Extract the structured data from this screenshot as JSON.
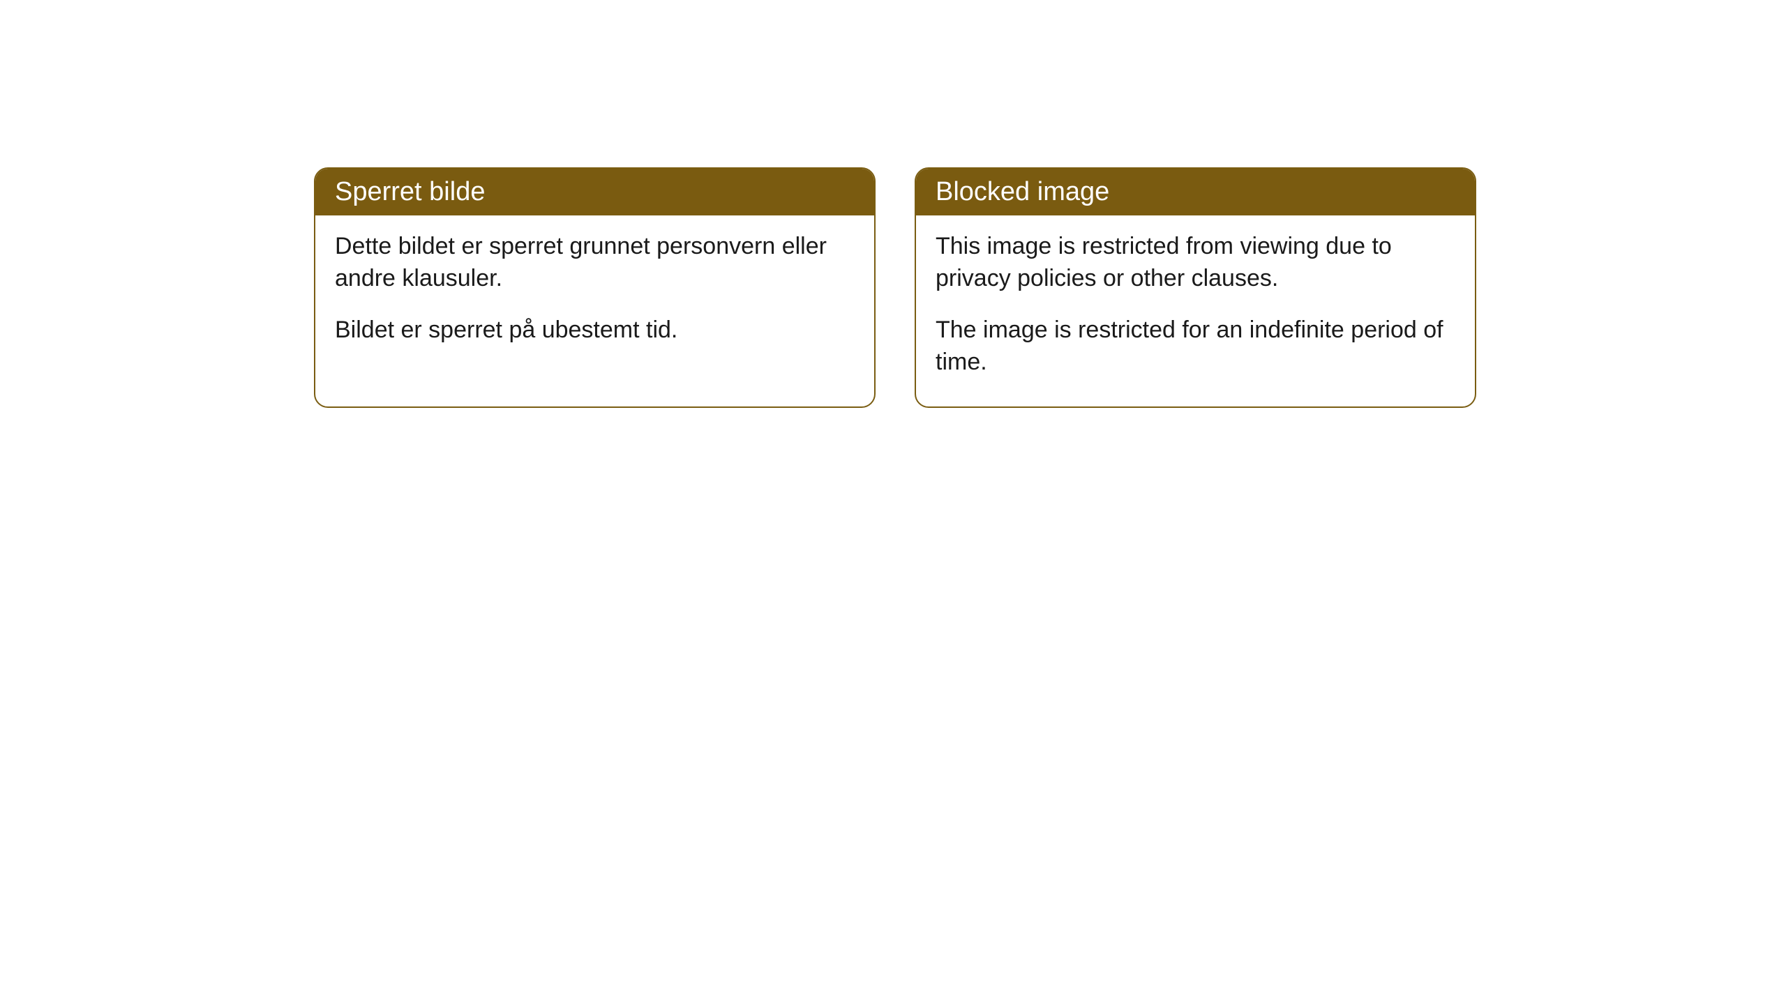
{
  "cards": [
    {
      "title": "Sperret bilde",
      "paragraph1": "Dette bildet er sperret grunnet personvern eller andre klausuler.",
      "paragraph2": "Bildet er sperret på ubestemt tid."
    },
    {
      "title": "Blocked image",
      "paragraph1": "This image is restricted from viewing due to privacy policies or other clauses.",
      "paragraph2": "The image is restricted for an indefinite period of time."
    }
  ],
  "styling": {
    "header_background": "#7a5b10",
    "header_text_color": "#ffffff",
    "border_color": "#7a5d12",
    "body_text_color": "#1a1a1a",
    "background_color": "#ffffff",
    "border_radius": 20,
    "title_fontsize": 38,
    "body_fontsize": 34
  }
}
